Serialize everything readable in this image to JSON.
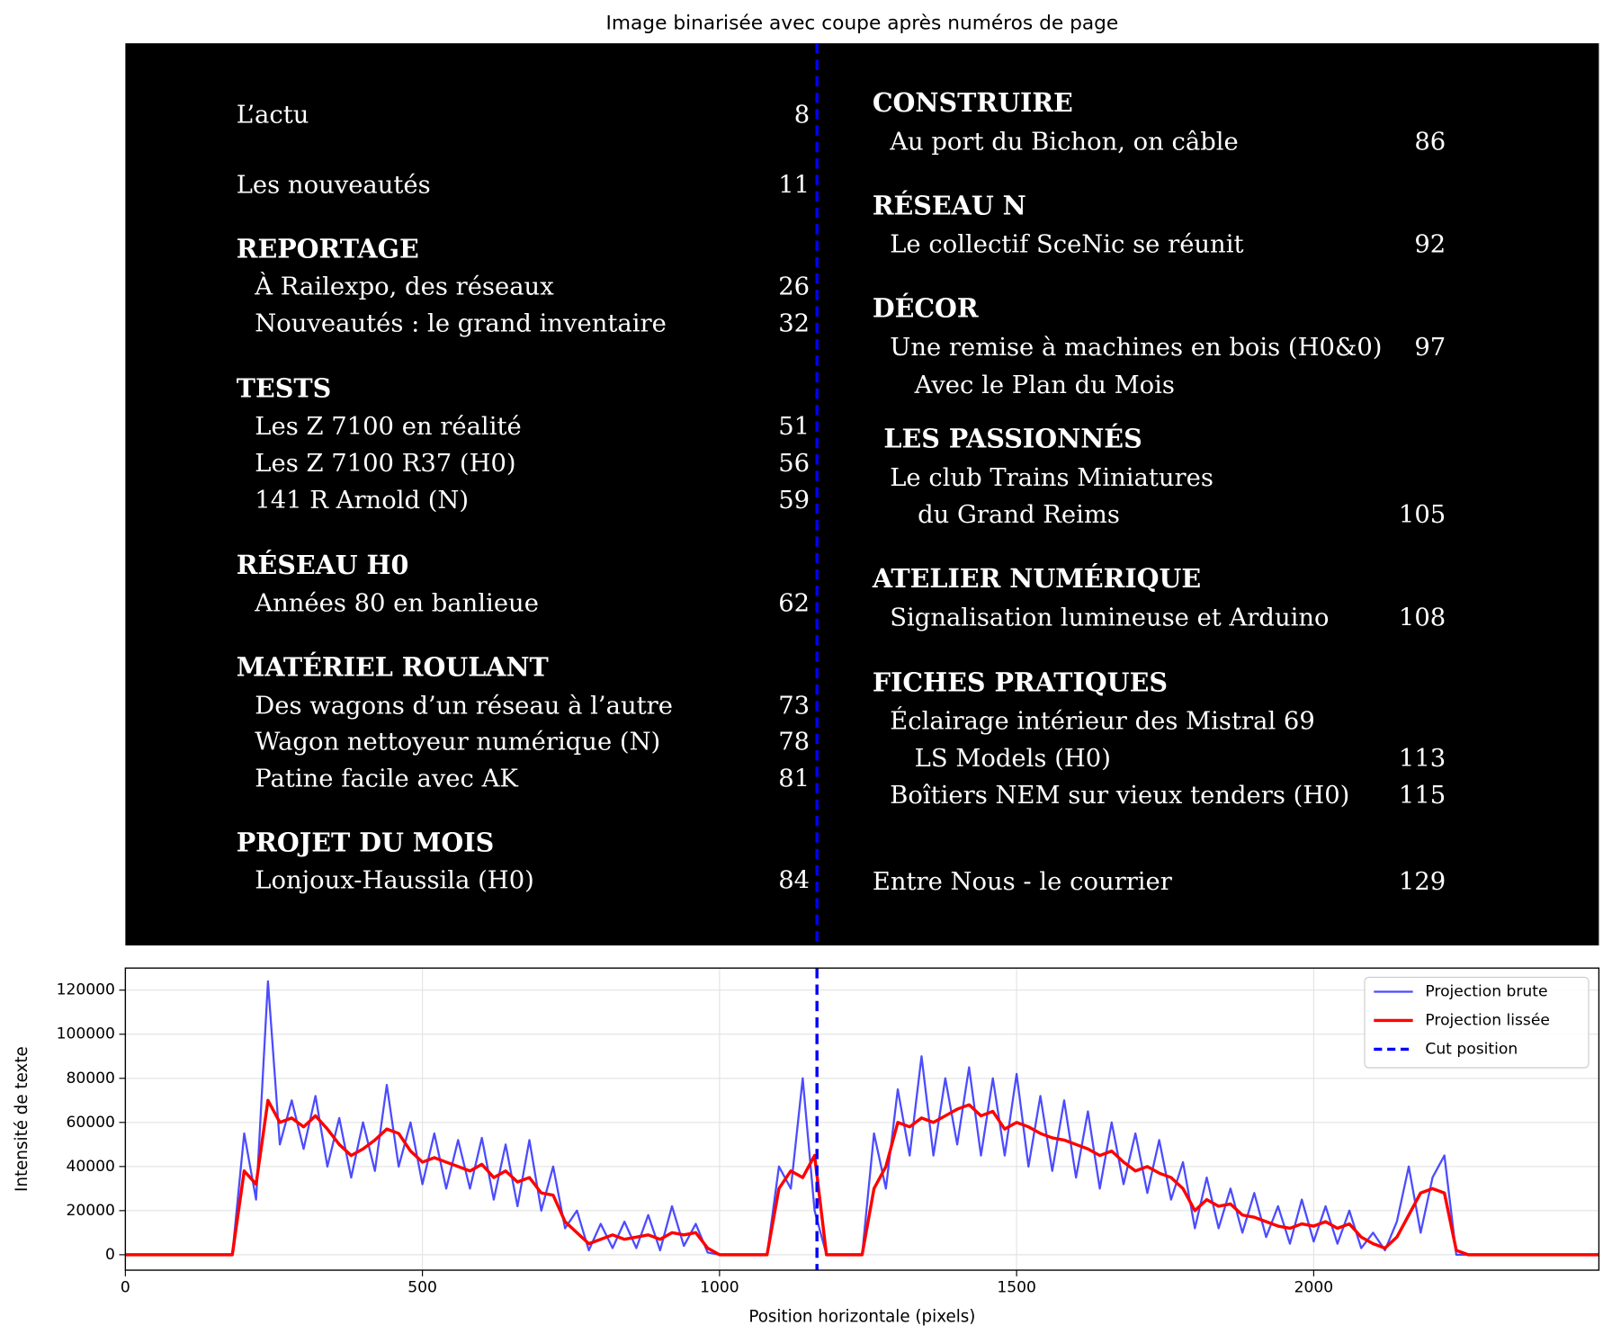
{
  "chart_data": [
    {
      "type": "image",
      "title": "Image binarisée avec coupe après numéros de page",
      "xlim": [
        0,
        2480
      ],
      "cut": 1164,
      "cut_color": "#0000ff",
      "columns": [
        [
          {
            "items": [
              {
                "text": "L’actu",
                "page": 8
              }
            ]
          },
          {
            "items": [
              {
                "text": "Les nouveautés",
                "page": 11
              }
            ]
          },
          {
            "heading": "REPORTAGE",
            "items": [
              {
                "text": "À Railexpo, des réseaux",
                "page": 26
              },
              {
                "text": "Nouveautés : le grand inventaire",
                "page": 32
              }
            ]
          },
          {
            "heading": "TESTS",
            "items": [
              {
                "text": "Les Z 7100 en réalité",
                "page": 51
              },
              {
                "text": "Les Z 7100 R37 (H0)",
                "page": 56
              },
              {
                "text": "141 R Arnold (N)",
                "page": 59
              }
            ]
          },
          {
            "heading": "RÉSEAU H0",
            "items": [
              {
                "text": "Années 80 en banlieue",
                "page": 62
              }
            ]
          },
          {
            "heading": "MATÉRIEL ROULANT",
            "items": [
              {
                "text": "Des wagons d’un réseau à l’autre",
                "page": 73
              },
              {
                "text": "Wagon nettoyeur numérique (N)",
                "page": 78
              },
              {
                "text": "Patine facile avec AK",
                "page": 81
              }
            ]
          },
          {
            "heading": "PROJET DU MOIS",
            "items": [
              {
                "text": "Lonjoux-Haussila (H0)",
                "page": 84
              }
            ]
          }
        ],
        [
          {
            "heading": "CONSTRUIRE",
            "items": [
              {
                "text": "Au port du Bichon, on câble",
                "page": 86
              }
            ]
          },
          {
            "heading": "RÉSEAU N",
            "items": [
              {
                "text": "Le collectif SceNic se réunit",
                "page": 92
              }
            ]
          },
          {
            "heading": "DÉCOR",
            "items": [
              {
                "text": "Une remise à machines en bois (H0&0)",
                "page": 97
              },
              {
                "text": "Avec le Plan du Mois"
              }
            ]
          },
          {
            "heading": "LES PASSIONNÉS",
            "items": [
              {
                "text": "Le club Trains Miniatures"
              },
              {
                "text": "du Grand Reims",
                "page": 105
              }
            ]
          },
          {
            "heading": "ATELIER NUMÉRIQUE",
            "items": [
              {
                "text": "Signalisation lumineuse et Arduino",
                "page": 108
              }
            ]
          },
          {
            "heading": "FICHES PRATIQUES",
            "items": [
              {
                "text": "Éclairage intérieur des Mistral 69"
              },
              {
                "text": "LS Models (H0)",
                "page": 113
              },
              {
                "text": "Boîtiers NEM sur vieux tenders (H0)",
                "page": 115
              }
            ]
          },
          {
            "items": [
              {
                "text": "Entre Nous - le courrier",
                "page": 129
              }
            ]
          }
        ]
      ]
    },
    {
      "type": "line",
      "x_label": "Position horizontale (pixels)",
      "y_label": "Intensité de texte",
      "xlim": [
        0,
        2480
      ],
      "ylim": [
        -7000,
        130000
      ],
      "xticks": [
        0,
        500,
        1000,
        1500,
        2000
      ],
      "yticks": [
        0,
        20000,
        40000,
        60000,
        80000,
        100000,
        120000
      ],
      "grid": true,
      "legend": "upper right",
      "x": [
        0,
        20,
        40,
        60,
        80,
        100,
        120,
        140,
        160,
        180,
        200,
        220,
        240,
        260,
        280,
        300,
        320,
        340,
        360,
        380,
        400,
        420,
        440,
        460,
        480,
        500,
        520,
        540,
        560,
        580,
        600,
        620,
        640,
        660,
        680,
        700,
        720,
        740,
        760,
        780,
        800,
        820,
        840,
        860,
        880,
        900,
        920,
        940,
        960,
        980,
        1000,
        1020,
        1040,
        1060,
        1080,
        1100,
        1120,
        1140,
        1160,
        1180,
        1200,
        1220,
        1240,
        1260,
        1280,
        1300,
        1320,
        1340,
        1360,
        1380,
        1400,
        1420,
        1440,
        1460,
        1480,
        1500,
        1520,
        1540,
        1560,
        1580,
        1600,
        1620,
        1640,
        1660,
        1680,
        1700,
        1720,
        1740,
        1760,
        1780,
        1800,
        1820,
        1840,
        1860,
        1880,
        1900,
        1920,
        1940,
        1960,
        1980,
        2000,
        2020,
        2040,
        2060,
        2080,
        2100,
        2120,
        2140,
        2160,
        2180,
        2200,
        2220,
        2240,
        2260,
        2280,
        2300,
        2320,
        2340,
        2360,
        2380,
        2400,
        2420,
        2440,
        2460,
        2480
      ],
      "series": [
        {
          "name": "Projection brute",
          "color": "#0000ff",
          "alpha": 0.7,
          "width": 2,
          "values": [
            0,
            0,
            0,
            0,
            0,
            0,
            0,
            0,
            0,
            0,
            55000,
            25000,
            124000,
            50000,
            70000,
            48000,
            72000,
            40000,
            62000,
            35000,
            60000,
            38000,
            77000,
            40000,
            60000,
            32000,
            55000,
            30000,
            52000,
            30000,
            53000,
            25000,
            50000,
            22000,
            52000,
            20000,
            40000,
            12000,
            20000,
            2000,
            14000,
            3000,
            15000,
            3000,
            18000,
            2000,
            22000,
            4000,
            14000,
            1000,
            0,
            0,
            0,
            0,
            0,
            40000,
            30000,
            80000,
            20000,
            0,
            0,
            0,
            0,
            55000,
            30000,
            75000,
            45000,
            90000,
            45000,
            80000,
            50000,
            85000,
            45000,
            80000,
            45000,
            82000,
            40000,
            72000,
            38000,
            70000,
            35000,
            65000,
            30000,
            60000,
            32000,
            55000,
            28000,
            52000,
            25000,
            42000,
            12000,
            35000,
            12000,
            30000,
            10000,
            28000,
            8000,
            22000,
            5000,
            25000,
            6000,
            22000,
            5000,
            20000,
            3000,
            10000,
            2000,
            15000,
            40000,
            10000,
            35000,
            45000,
            0,
            0,
            0,
            0,
            0,
            0,
            0,
            0,
            0,
            0,
            0,
            0,
            0
          ]
        },
        {
          "name": "Projection lissée",
          "color": "#ff0000",
          "alpha": 1,
          "width": 3,
          "values": [
            0,
            0,
            0,
            0,
            0,
            0,
            0,
            0,
            0,
            0,
            38000,
            32000,
            70000,
            60000,
            62000,
            58000,
            63000,
            57000,
            50000,
            45000,
            48000,
            52000,
            57000,
            55000,
            47000,
            42000,
            44000,
            42000,
            40000,
            38000,
            41000,
            35000,
            38000,
            33000,
            35000,
            28000,
            27000,
            15000,
            10000,
            5000,
            7000,
            9000,
            7000,
            8000,
            9000,
            7000,
            10000,
            9000,
            10000,
            3000,
            0,
            0,
            0,
            0,
            0,
            30000,
            38000,
            35000,
            45000,
            0,
            0,
            0,
            0,
            30000,
            40000,
            60000,
            58000,
            62000,
            60000,
            63000,
            66000,
            68000,
            63000,
            65000,
            57000,
            60000,
            58000,
            55000,
            53000,
            52000,
            50000,
            48000,
            45000,
            47000,
            42000,
            38000,
            40000,
            37000,
            35000,
            30000,
            20000,
            25000,
            22000,
            23000,
            18000,
            17000,
            15000,
            13000,
            12000,
            14000,
            13000,
            15000,
            12000,
            14000,
            8000,
            5000,
            3000,
            8000,
            18000,
            28000,
            30000,
            28000,
            2000,
            0,
            0,
            0,
            0,
            0,
            0,
            0,
            0,
            0,
            0,
            0,
            0
          ]
        }
      ],
      "vline": {
        "name": "Cut position",
        "x": 1164,
        "color": "#0000ff"
      }
    }
  ]
}
